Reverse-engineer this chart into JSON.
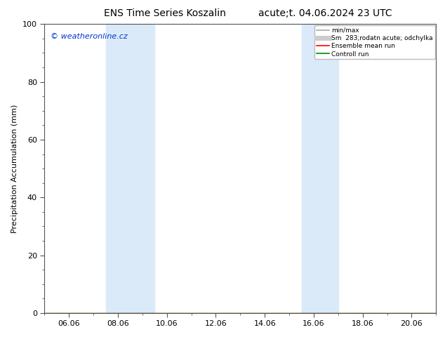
{
  "title_left": "ENS Time Series Koszalin",
  "title_right": "acute;t. 04.06.2024 23 UTC",
  "ylabel": "Precipitation Accumulation (mm)",
  "ylim": [
    0,
    100
  ],
  "yticks": [
    0,
    20,
    40,
    60,
    80,
    100
  ],
  "xtick_labels": [
    "06.06",
    "08.06",
    "10.06",
    "12.06",
    "14.06",
    "16.06",
    "18.06",
    "20.06"
  ],
  "xtick_positions": [
    2,
    4,
    6,
    8,
    10,
    12,
    14,
    16
  ],
  "xlim": [
    1,
    17
  ],
  "shaded_bands": [
    {
      "x_start": 3.5,
      "x_end": 5.5
    },
    {
      "x_start": 11.5,
      "x_end": 13.0
    }
  ],
  "shaded_color": "#daeaf8",
  "watermark_text": "© weatheronline.cz",
  "watermark_color": "#0033cc",
  "legend_items": [
    {
      "label": "min/max",
      "color": "#aaaaaa",
      "lw": 1.2,
      "style": "-"
    },
    {
      "label": "Sm  283;rodatn acute; odchylka",
      "color": "#cccccc",
      "lw": 5,
      "style": "-"
    },
    {
      "label": "Ensemble mean run",
      "color": "#ff0000",
      "lw": 1.2,
      "style": "-"
    },
    {
      "label": "Controll run",
      "color": "#008800",
      "lw": 1.2,
      "style": "-"
    }
  ],
  "bg_color": "#ffffff",
  "tick_color": "#555555",
  "spine_color": "#555555",
  "title_fontsize": 10,
  "label_fontsize": 8,
  "tick_fontsize": 8,
  "watermark_fontsize": 8
}
